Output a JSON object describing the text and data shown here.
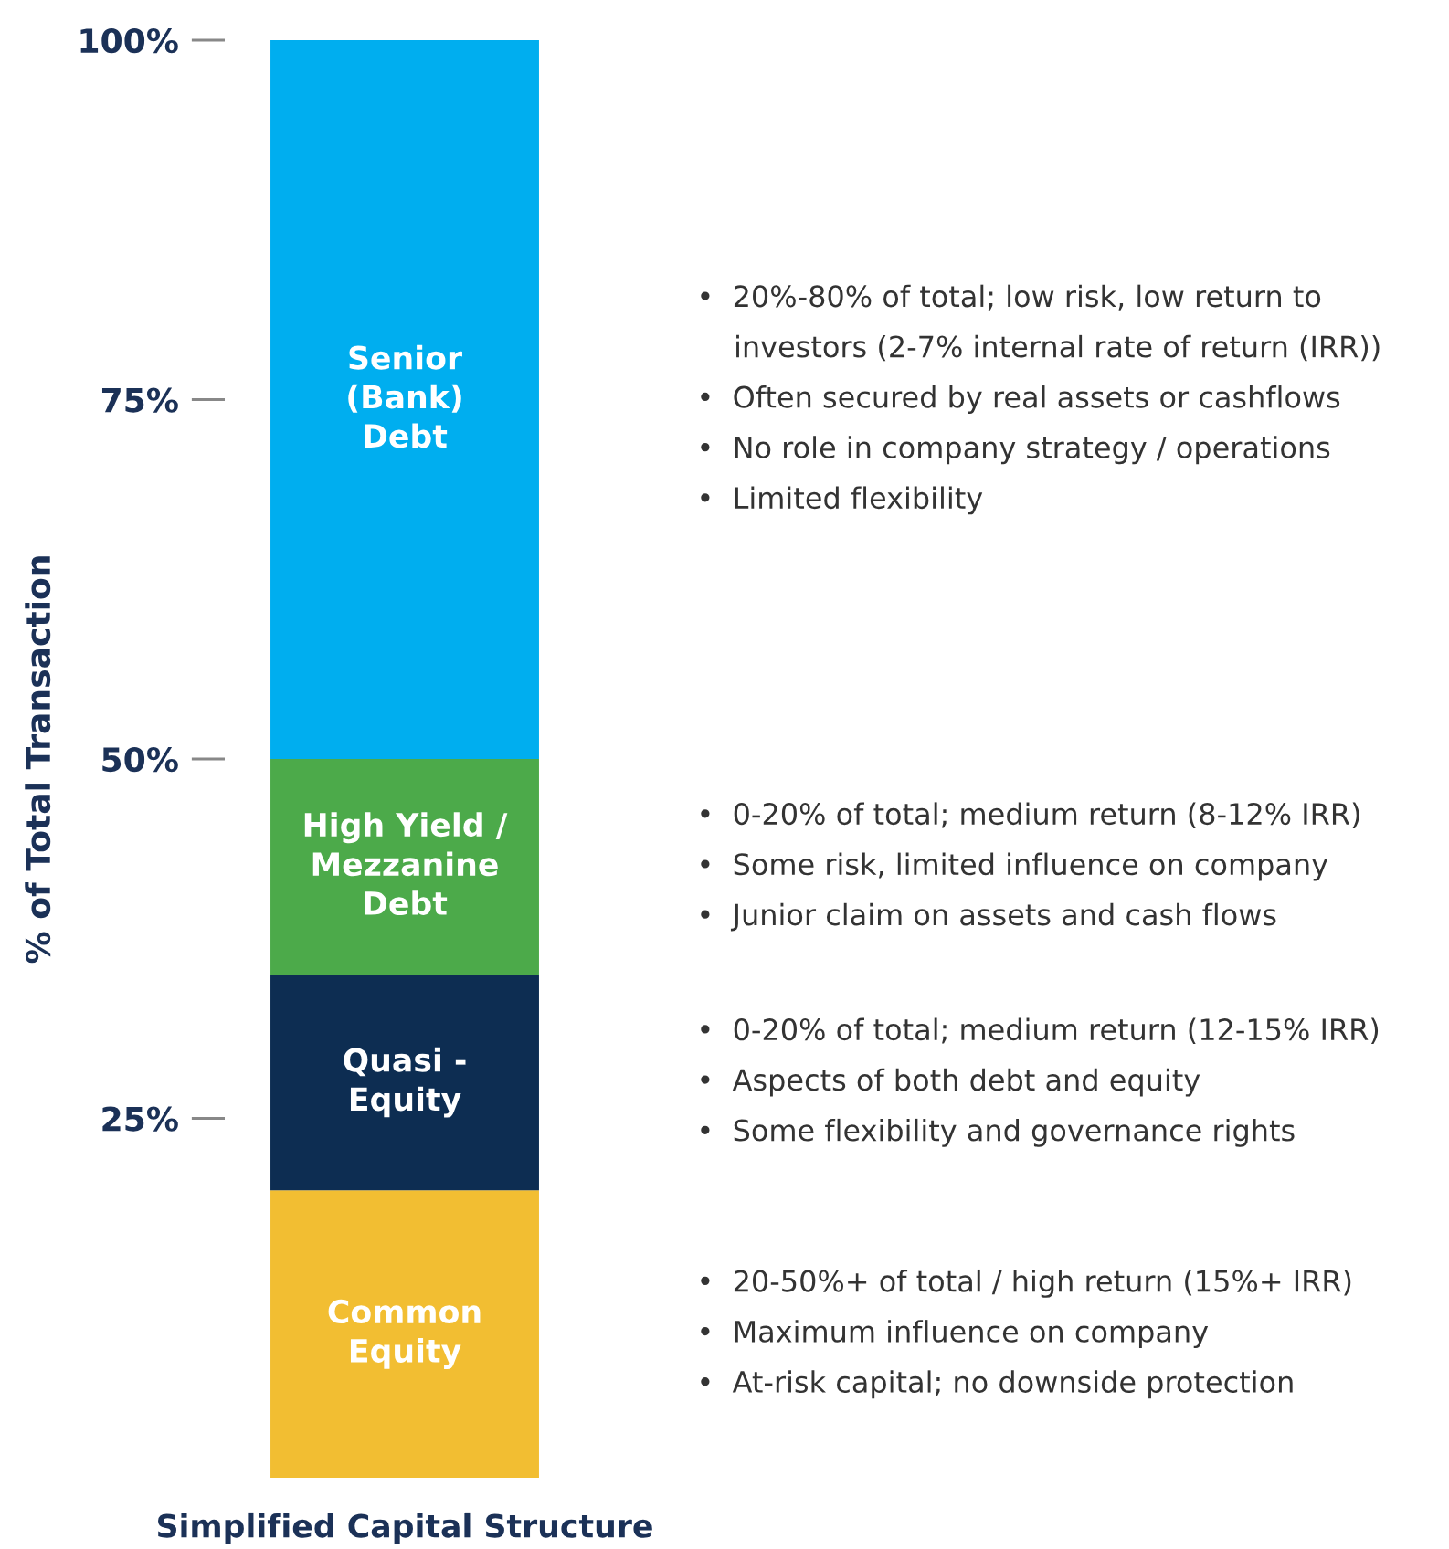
{
  "chart_data": {
    "type": "bar",
    "stacked": true,
    "ylabel": "% of Total Transaction",
    "categories": [
      "Simplified Capital Structure"
    ],
    "series": [
      {
        "name": "Common\nEquity",
        "color": "#f2be32",
        "values": [
          20
        ]
      },
      {
        "name": "Quasi -\nEquity",
        "color": "#0d2d52",
        "values": [
          15
        ]
      },
      {
        "name": "High Yield /\nMezzanine\nDebt",
        "color": "#4caa4a",
        "values": [
          15
        ]
      },
      {
        "name": "Senior\n(Bank)\nDebt",
        "color": "#00aeef",
        "values": [
          50
        ]
      }
    ],
    "ylim": [
      0,
      100
    ],
    "yticks": [
      {
        "value": 25,
        "label": "25%"
      },
      {
        "value": 50,
        "label": "50%"
      },
      {
        "value": 75,
        "label": "75%"
      },
      {
        "value": 100,
        "label": "100%"
      }
    ],
    "grid": false,
    "legend": false,
    "annotations": [
      "•  20%-80% of total; low risk, low return to\n    investors (2-7% internal rate of return (IRR))\n•  Often secured by real assets or cashflows\n•  No role in company strategy / operations\n•  Limited flexibility",
      "•  0-20% of total; medium return (8-12% IRR)\n•  Some risk, limited influence on company\n•  Junior claim on assets and cash flows",
      "•  0-20% of total; medium return (12-15% IRR)\n•  Aspects of both debt and equity\n•  Some flexibility and governance rights",
      "•  20-50%+ of total / high return (15%+ IRR)\n•  Maximum influence on company\n•  At-risk capital; no downside protection"
    ]
  }
}
